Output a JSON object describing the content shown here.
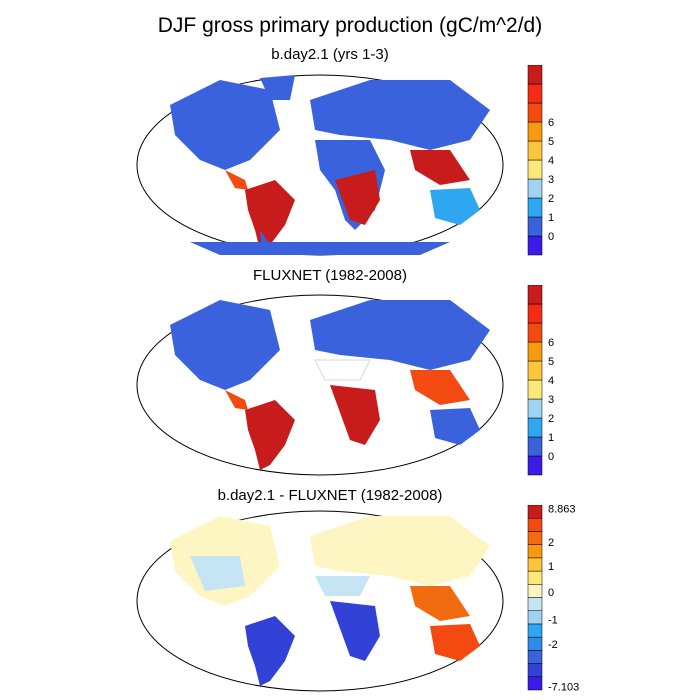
{
  "figure": {
    "title": "DJF gross primary production (gC/m^2/d)"
  },
  "panels": [
    {
      "id": "model",
      "subtitle": "b.day2.1 (yrs 1-3)"
    },
    {
      "id": "obs",
      "subtitle": "FLUXNET (1982-2008)"
    },
    {
      "id": "diff",
      "subtitle": "b.day2.1 - FLUXNET (1982-2008)"
    }
  ],
  "colorbars": {
    "absolute": {
      "colors": [
        "#3b1be8",
        "#3a62dc",
        "#2ea7f0",
        "#9fd3f3",
        "#fce97a",
        "#fcc53b",
        "#f89a10",
        "#f24a10",
        "#f52a17",
        "#c81b1b"
      ],
      "ticks": [
        "0",
        "1",
        "2",
        "3",
        "4",
        "5",
        "6"
      ]
    },
    "difference": {
      "colors": [
        "#3b1be8",
        "#3342d6",
        "#3a62dc",
        "#2f8be7",
        "#2ea7f0",
        "#9fd3f3",
        "#c5e5f5",
        "#fdf6c3",
        "#fce97a",
        "#fcc53b",
        "#f89a10",
        "#f26b10",
        "#f24a10",
        "#c81b1b"
      ],
      "ticks": [
        "8.863",
        "2",
        "1",
        "0",
        "-1",
        "-2",
        "-7.103"
      ]
    }
  }
}
